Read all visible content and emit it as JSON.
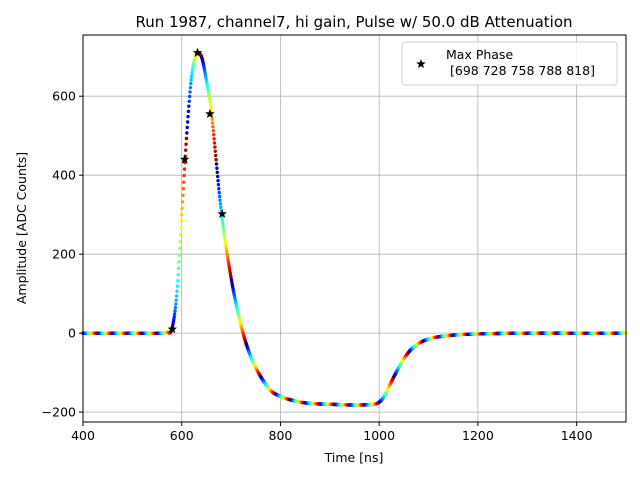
{
  "chart_data": {
    "type": "scatter",
    "title": "Run 1987, channel7, hi gain, Pulse w/ 50.0 dB Attenuation",
    "xlabel": "Time [ns]",
    "ylabel": "Amplitude [ADC Counts]",
    "xlim": [
      400,
      1500
    ],
    "ylim": [
      -225,
      755
    ],
    "xticks": [
      400,
      600,
      800,
      1000,
      1200,
      1400
    ],
    "yticks": [
      -200,
      0,
      200,
      400,
      600
    ],
    "grid": true,
    "legend": {
      "placement": "top-right",
      "entries": [
        {
          "label": "Max Phase",
          "sublabel": "[698 728 758 788 818]",
          "marker": "black-star"
        }
      ]
    },
    "colormap": "jet",
    "pulse_curve": {
      "x": [
        400,
        560,
        570,
        580,
        590,
        600,
        610,
        620,
        630,
        640,
        650,
        660,
        680,
        700,
        720,
        740,
        760,
        780,
        800,
        830,
        860,
        900,
        950,
        990,
        1000,
        1010,
        1030,
        1050,
        1070,
        1100,
        1150,
        1200,
        1300,
        1400,
        1500
      ],
      "y": [
        0,
        0,
        2,
        10,
        100,
        300,
        500,
        650,
        705,
        700,
        640,
        560,
        310,
        140,
        20,
        -60,
        -110,
        -145,
        -160,
        -172,
        -178,
        -180,
        -182,
        -180,
        -175,
        -160,
        -110,
        -65,
        -35,
        -15,
        -5,
        -2,
        0,
        0,
        0
      ]
    },
    "max_phase_points": {
      "name": "Max Phase",
      "x": [
        581,
        606,
        632,
        657,
        682
      ],
      "y": [
        10,
        440,
        710,
        555,
        302
      ]
    }
  }
}
